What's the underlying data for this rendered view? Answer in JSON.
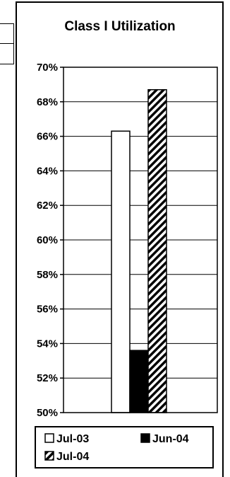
{
  "chart_data": {
    "type": "bar",
    "title": "Class I Utilization",
    "xlabel": "",
    "ylabel": "",
    "categories": [
      ""
    ],
    "series": [
      {
        "name": "Jul-03",
        "values": [
          66.3
        ],
        "fill": "white"
      },
      {
        "name": "Jun-04",
        "values": [
          53.6
        ],
        "fill": "black"
      },
      {
        "name": "Jul-04",
        "values": [
          68.7
        ],
        "fill": "hatch"
      }
    ],
    "ylim": [
      50,
      70
    ],
    "yticks": [
      50,
      52,
      54,
      56,
      58,
      60,
      62,
      64,
      66,
      68,
      70
    ],
    "ytick_labels": [
      "50%",
      "52%",
      "54%",
      "56%",
      "58%",
      "60%",
      "62%",
      "64%",
      "66%",
      "68%",
      "70%"
    ],
    "grid": true,
    "legend": "bottom"
  },
  "colors": {
    "bar_outline": "#000000",
    "background": "#ffffff"
  }
}
